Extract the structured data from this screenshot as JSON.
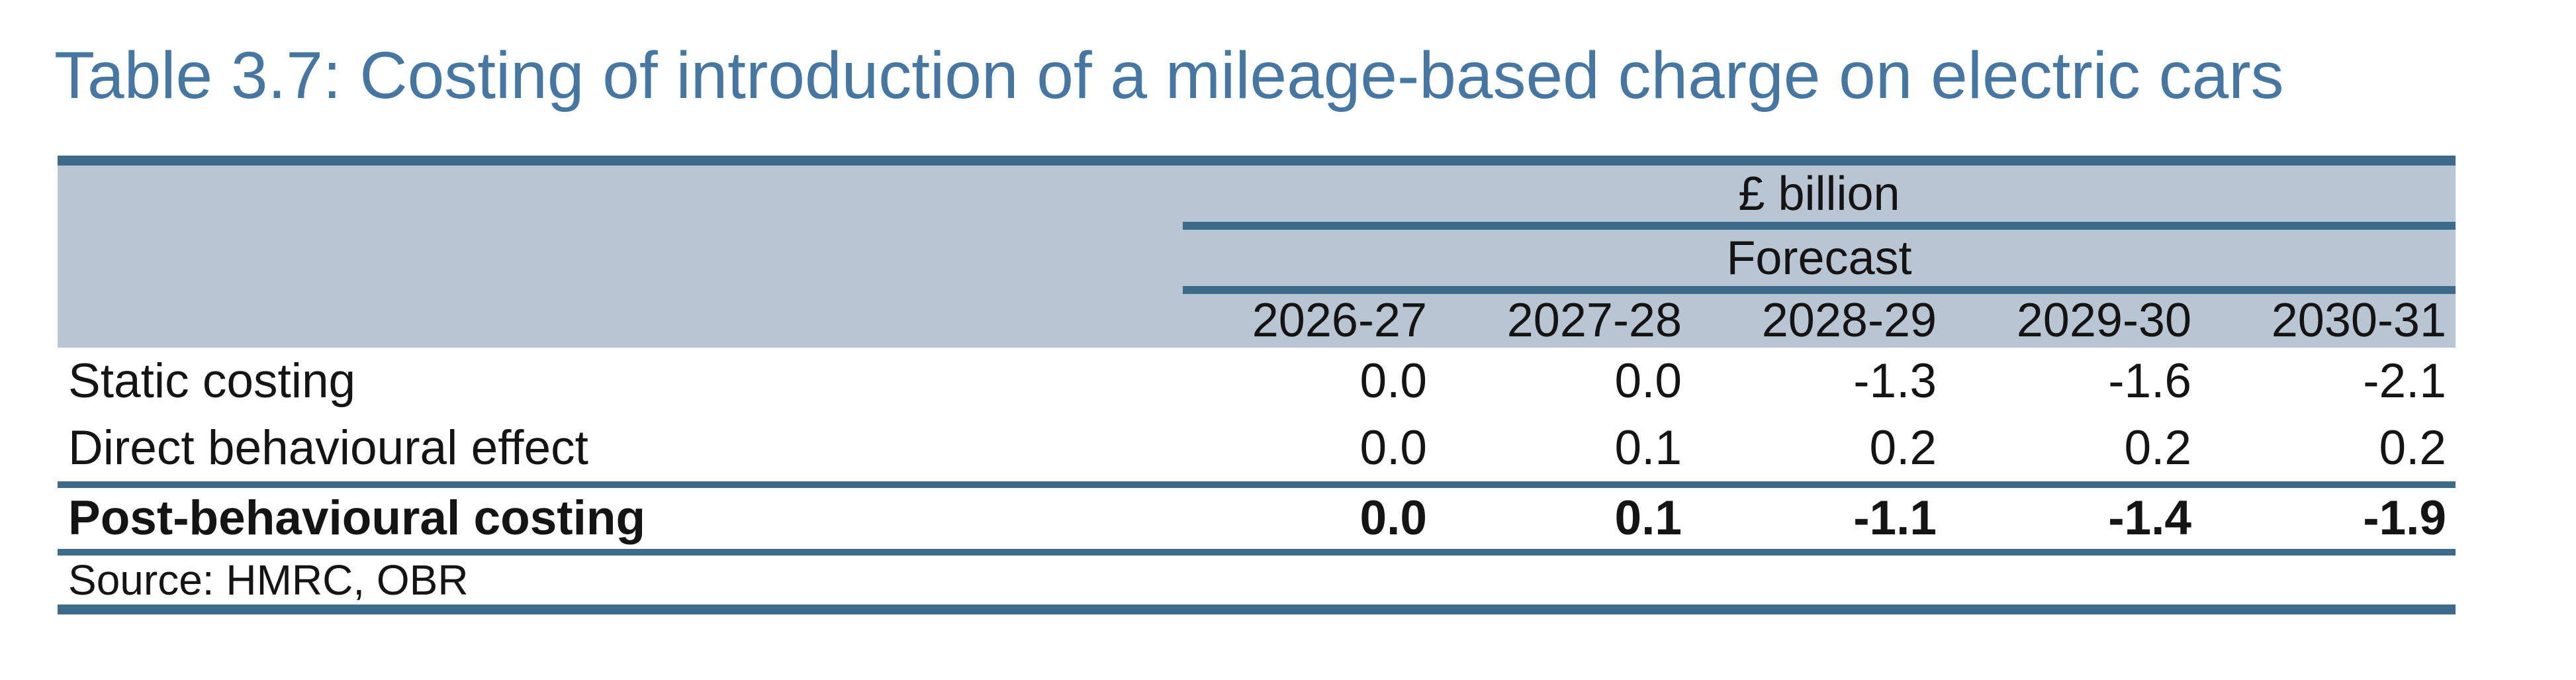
{
  "title": "Table 3.7: Costing of introduction of a mileage-based charge on electric cars",
  "table": {
    "unit_header": "£ billion",
    "forecast_header": "Forecast",
    "years": [
      "2026-27",
      "2027-28",
      "2028-29",
      "2029-30",
      "2030-31"
    ],
    "rows": [
      {
        "label": "Static costing",
        "values": [
          "0.0",
          "0.0",
          "-1.3",
          "-1.6",
          "-2.1"
        ],
        "bold": false
      },
      {
        "label": "Direct behavioural effect",
        "values": [
          "0.0",
          "0.1",
          "0.2",
          "0.2",
          "0.2"
        ],
        "bold": false
      },
      {
        "label": "Post-behavioural costing",
        "values": [
          "0.0",
          "0.1",
          "-1.1",
          "-1.4",
          "-1.9"
        ],
        "bold": true
      }
    ],
    "source": "Source: HMRC, OBR"
  },
  "colors": {
    "title_blue": "#4577a2",
    "rule_blue": "#3e6a8c",
    "header_band": "#b8c5d2",
    "body_text": "#141414",
    "page_background": "#ffffff"
  }
}
